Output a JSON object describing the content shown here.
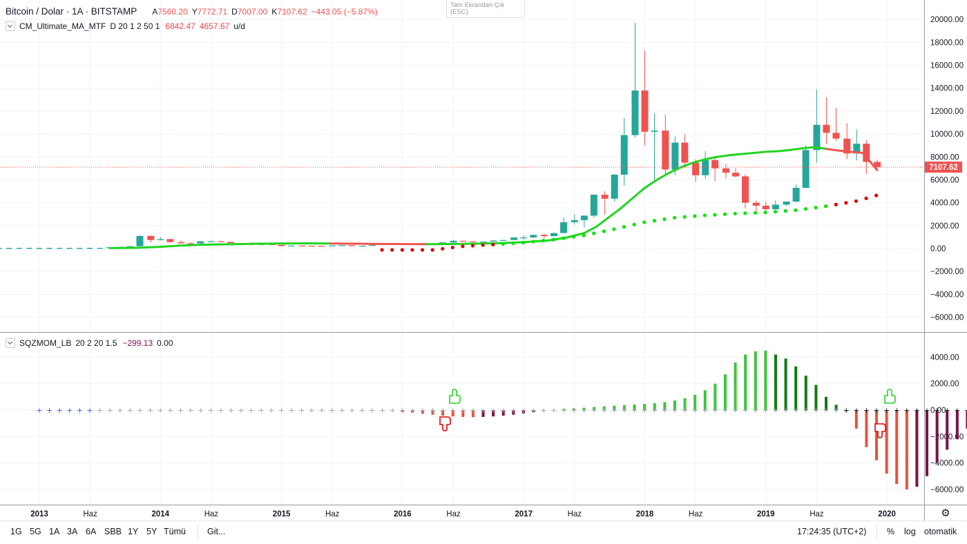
{
  "legend": {
    "symbol": "Bitcoin / Dolar · 1A · BITSTAMP",
    "ohlc": [
      {
        "k": "A",
        "v": "7560.20"
      },
      {
        "k": "Y",
        "v": "7772.71"
      },
      {
        "k": "D",
        "v": "7007.00"
      },
      {
        "k": "K",
        "v": "7107.62"
      },
      {
        "k": "",
        "v": "−443.05 (−5.87%)"
      }
    ]
  },
  "indicator1": {
    "name": "CM_Ultimate_MA_MTF",
    "params": "D 20 1 2 50 1",
    "v1": "6842.47",
    "v2": "4657.67",
    "v3": "u/d"
  },
  "indicator2": {
    "name": "SQZMOM_LB",
    "params": "20 2 20 1.5",
    "v1": "−299.13",
    "v2": "0.00"
  },
  "fullscreen_exit": {
    "line1": "Tam Ekrandan Çık",
    "line2": "(ESC)"
  },
  "price_tag": "7107.62",
  "colors": {
    "bull": "#26a69a",
    "bear": "#ef5350",
    "ma_green": "#22d322",
    "dots_green": "#00e600",
    "dots_red": "#e00000",
    "mom_lime": "#3ec43e",
    "mom_green": "#0f7a0f",
    "mom_red": "#e8533a",
    "mom_maroon": "#7b1248"
  },
  "time_axis": {
    "labels": [
      {
        "t": "2013",
        "x": 2013.0
      },
      {
        "t": "Haz",
        "x": 2013.42
      },
      {
        "t": "2014",
        "x": 2014.0
      },
      {
        "t": "Haz",
        "x": 2014.42
      },
      {
        "t": "2015",
        "x": 2015.0
      },
      {
        "t": "Haz",
        "x": 2015.42
      },
      {
        "t": "2016",
        "x": 2016.0
      },
      {
        "t": "Haz",
        "x": 2016.42
      },
      {
        "t": "2017",
        "x": 2017.0
      },
      {
        "t": "Haz",
        "x": 2017.42
      },
      {
        "t": "2018",
        "x": 2018.0
      },
      {
        "t": "Haz",
        "x": 2018.42
      },
      {
        "t": "2019",
        "x": 2019.0
      },
      {
        "t": "Haz",
        "x": 2019.42
      },
      {
        "t": "2020",
        "x": 2020.0
      }
    ]
  },
  "bottom_bar": {
    "timeframes": [
      "1G",
      "5G",
      "1A",
      "3A",
      "6A",
      "SBB",
      "1Y",
      "5Y",
      "Tümü"
    ],
    "goto": "Git...",
    "clock": "17:24:35 (UTC+2)",
    "percent": "%",
    "log": "log",
    "auto": "otomatik"
  },
  "chart_data": [
    {
      "type": "candlestick",
      "title": "Bitcoin / Dolar · 1A · BITSTAMP",
      "ylim": [
        -7000,
        20500
      ],
      "y_ticks": [
        -6000,
        -4000,
        -2000,
        0,
        2000,
        4000,
        6000,
        8000,
        10000,
        12000,
        14000,
        16000,
        18000,
        20000
      ],
      "y_tick_labels": [
        "−6000.00",
        "−4000.00",
        "−2000.00",
        "0.00",
        "2000.00",
        "4000.00",
        "6000.00",
        "8000.00",
        "10000.00",
        "12000.00",
        "14000.00",
        "16000.00",
        "18000.00",
        "20000.00"
      ],
      "current_price": 7107.62,
      "candles_note": "monthly OHLC, x = decimal year of month start",
      "candles": [
        [
          2013.58,
          100,
          130,
          90,
          120
        ],
        [
          2013.67,
          120,
          150,
          110,
          140
        ],
        [
          2013.75,
          140,
          210,
          130,
          200
        ],
        [
          2013.83,
          200,
          1160,
          190,
          1100
        ],
        [
          2013.92,
          1100,
          1160,
          500,
          740
        ],
        [
          2014.0,
          740,
          1000,
          700,
          820
        ],
        [
          2014.08,
          820,
          860,
          520,
          560
        ],
        [
          2014.17,
          560,
          700,
          450,
          460
        ],
        [
          2014.25,
          460,
          520,
          350,
          450
        ],
        [
          2014.33,
          450,
          650,
          420,
          630
        ],
        [
          2014.42,
          630,
          680,
          560,
          640
        ],
        [
          2014.5,
          640,
          660,
          560,
          580
        ],
        [
          2014.58,
          580,
          600,
          430,
          480
        ],
        [
          2014.67,
          480,
          500,
          380,
          390
        ],
        [
          2014.75,
          390,
          430,
          280,
          340
        ],
        [
          2014.83,
          340,
          460,
          320,
          380
        ],
        [
          2014.92,
          380,
          400,
          300,
          320
        ],
        [
          2015.0,
          320,
          320,
          150,
          220
        ],
        [
          2015.08,
          220,
          270,
          210,
          255
        ],
        [
          2015.17,
          255,
          300,
          240,
          245
        ],
        [
          2015.25,
          245,
          260,
          215,
          235
        ],
        [
          2015.33,
          235,
          245,
          225,
          230
        ],
        [
          2015.42,
          230,
          270,
          220,
          262
        ],
        [
          2015.5,
          262,
          320,
          250,
          285
        ],
        [
          2015.58,
          285,
          290,
          200,
          230
        ],
        [
          2015.67,
          230,
          250,
          220,
          236
        ],
        [
          2015.75,
          236,
          330,
          235,
          312
        ],
        [
          2015.83,
          312,
          500,
          300,
          378
        ],
        [
          2015.92,
          378,
          470,
          350,
          430
        ],
        [
          2016.0,
          430,
          460,
          350,
          368
        ],
        [
          2016.08,
          368,
          445,
          360,
          437
        ],
        [
          2016.17,
          437,
          440,
          400,
          416
        ],
        [
          2016.25,
          416,
          470,
          410,
          448
        ],
        [
          2016.33,
          448,
          550,
          440,
          531
        ],
        [
          2016.42,
          531,
          780,
          520,
          673
        ],
        [
          2016.5,
          673,
          700,
          600,
          624
        ],
        [
          2016.58,
          624,
          620,
          540,
          575
        ],
        [
          2016.67,
          575,
          610,
          570,
          608
        ],
        [
          2016.75,
          608,
          720,
          600,
          700
        ],
        [
          2016.83,
          700,
          750,
          690,
          742
        ],
        [
          2016.92,
          742,
          980,
          740,
          963
        ],
        [
          2017.0,
          963,
          1150,
          750,
          970
        ],
        [
          2017.08,
          970,
          1200,
          920,
          1190
        ],
        [
          2017.17,
          1190,
          1300,
          900,
          1080
        ],
        [
          2017.25,
          1080,
          1400,
          1070,
          1350
        ],
        [
          2017.33,
          1350,
          2700,
          1340,
          2300
        ],
        [
          2017.42,
          2300,
          2980,
          2100,
          2480
        ],
        [
          2017.5,
          2480,
          2900,
          1840,
          2870
        ],
        [
          2017.58,
          2870,
          4700,
          2700,
          4700
        ],
        [
          2017.67,
          4700,
          5000,
          2950,
          4350
        ],
        [
          2017.75,
          4350,
          6500,
          4100,
          6450
        ],
        [
          2017.83,
          6450,
          11400,
          5500,
          9900
        ],
        [
          2017.92,
          9900,
          19700,
          9700,
          13800
        ],
        [
          2018.0,
          13800,
          17300,
          9000,
          10200
        ],
        [
          2018.08,
          10200,
          11800,
          5900,
          10300
        ],
        [
          2018.17,
          10300,
          11700,
          6500,
          6900
        ],
        [
          2018.25,
          6900,
          9800,
          6400,
          9250
        ],
        [
          2018.33,
          9250,
          10000,
          7050,
          7500
        ],
        [
          2018.42,
          7500,
          7800,
          5800,
          6400
        ],
        [
          2018.5,
          6400,
          8500,
          6070,
          7730
        ],
        [
          2018.58,
          7730,
          7900,
          5880,
          7000
        ],
        [
          2018.67,
          7000,
          7400,
          6100,
          6620
        ],
        [
          2018.75,
          6620,
          7000,
          6200,
          6300
        ],
        [
          2018.83,
          6300,
          6500,
          3500,
          4000
        ],
        [
          2018.92,
          4000,
          4200,
          3100,
          3740
        ],
        [
          2019.0,
          3740,
          4100,
          3300,
          3430
        ],
        [
          2019.08,
          3430,
          4200,
          3400,
          3830
        ],
        [
          2019.17,
          3830,
          4100,
          3700,
          4100
        ],
        [
          2019.25,
          4100,
          5600,
          4050,
          5300
        ],
        [
          2019.33,
          5300,
          9000,
          5250,
          8600
        ],
        [
          2019.42,
          8600,
          13900,
          7500,
          10800
        ],
        [
          2019.5,
          10800,
          13200,
          9100,
          10100
        ],
        [
          2019.58,
          10100,
          12300,
          9400,
          9600
        ],
        [
          2019.67,
          9600,
          10950,
          7800,
          8300
        ],
        [
          2019.75,
          8300,
          10400,
          7700,
          9150
        ],
        [
          2019.83,
          9150,
          9500,
          6500,
          7560
        ],
        [
          2019.92,
          7560,
          7772.71,
          7007,
          7107.62
        ]
      ]
    },
    {
      "type": "line",
      "name": "CM_Ultimate_MA_MTF",
      "points": [
        [
          2013.58,
          40
        ],
        [
          2013.8,
          60
        ],
        [
          2014.0,
          150
        ],
        [
          2014.2,
          280
        ],
        [
          2014.4,
          350
        ],
        [
          2014.6,
          380
        ],
        [
          2014.8,
          420
        ],
        [
          2015.0,
          440
        ],
        [
          2015.2,
          450
        ],
        [
          2015.4,
          440
        ],
        [
          2015.6,
          420
        ],
        [
          2015.8,
          400
        ],
        [
          2016.0,
          390
        ],
        [
          2016.2,
          380
        ],
        [
          2016.4,
          390
        ],
        [
          2016.6,
          420
        ],
        [
          2016.8,
          470
        ],
        [
          2017.0,
          560
        ],
        [
          2017.2,
          700
        ],
        [
          2017.35,
          950
        ],
        [
          2017.5,
          1350
        ],
        [
          2017.6,
          1900
        ],
        [
          2017.7,
          2700
        ],
        [
          2017.8,
          3500
        ],
        [
          2017.9,
          4400
        ],
        [
          2018.0,
          5300
        ],
        [
          2018.1,
          6000
        ],
        [
          2018.2,
          6600
        ],
        [
          2018.3,
          7100
        ],
        [
          2018.4,
          7500
        ],
        [
          2018.5,
          7800
        ],
        [
          2018.6,
          8000
        ],
        [
          2018.7,
          8150
        ],
        [
          2018.8,
          8250
        ],
        [
          2018.9,
          8350
        ],
        [
          2019.0,
          8450
        ],
        [
          2019.1,
          8500
        ],
        [
          2019.2,
          8600
        ],
        [
          2019.3,
          8750
        ],
        [
          2019.4,
          8850
        ],
        [
          2019.5,
          8700
        ],
        [
          2019.6,
          8550
        ],
        [
          2019.7,
          8450
        ],
        [
          2019.8,
          8350
        ],
        [
          2019.92,
          6842.47
        ]
      ],
      "color_up": "#22d322",
      "color_down": "#ef5350"
    },
    {
      "type": "scatter",
      "name": "MA dots",
      "points_note": "second moving average plotted as dots",
      "points": [
        [
          2016.25,
          -120
        ],
        [
          2016.5,
          200
        ],
        [
          2016.75,
          350
        ],
        [
          2017.0,
          520
        ],
        [
          2017.25,
          780
        ],
        [
          2017.5,
          1150
        ],
        [
          2017.75,
          1700
        ],
        [
          2018.0,
          2300
        ],
        [
          2018.25,
          2700
        ],
        [
          2018.5,
          2900
        ],
        [
          2018.75,
          3050
        ],
        [
          2019.0,
          3150
        ],
        [
          2019.25,
          3350
        ],
        [
          2019.5,
          3700
        ],
        [
          2019.75,
          4150
        ],
        [
          2019.92,
          4657.67
        ]
      ]
    },
    {
      "type": "bar",
      "name": "SQZMOM_LB",
      "ylim": [
        -6900,
        5400
      ],
      "y_ticks": [
        -6000,
        -4000,
        -2000,
        0,
        2000,
        4000
      ],
      "y_tick_labels": [
        "−6000.00",
        "−4000.00",
        "−2000.00",
        "0.00",
        "2000.00",
        "4000.00"
      ],
      "x_start": 2013.0,
      "x_step": 0.0833,
      "values": [
        0,
        0,
        0,
        0,
        0,
        0,
        0,
        0,
        0,
        0,
        0,
        0,
        0,
        0,
        0,
        0,
        0,
        0,
        0,
        0,
        0,
        0,
        0,
        0,
        0,
        0,
        0,
        0,
        0,
        0,
        0,
        0,
        0,
        0,
        0,
        0,
        -150,
        -200,
        -280,
        -350,
        -420,
        -480,
        -520,
        -540,
        -520,
        -480,
        -420,
        -350,
        -250,
        -150,
        -60,
        0,
        80,
        130,
        180,
        230,
        280,
        330,
        380,
        420,
        470,
        520,
        600,
        720,
        900,
        1150,
        1500,
        2000,
        2700,
        3600,
        4200,
        4450,
        4500,
        4200,
        3900,
        3300,
        2600,
        1900,
        1000,
        400,
        -100,
        -1400,
        -2800,
        -3800,
        -4800,
        -5600,
        -6000,
        -5800,
        -5000,
        -4000,
        -3000,
        -2200,
        -1400,
        -900,
        -299.13
      ]
    }
  ]
}
